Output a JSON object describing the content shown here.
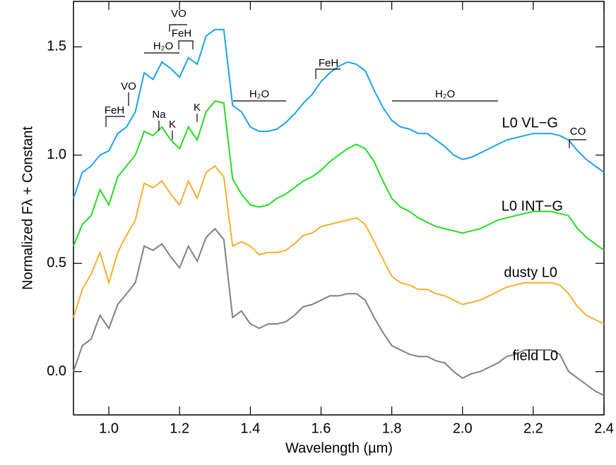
{
  "chart_data": {
    "type": "line",
    "xlabel": "Wavelength (µm)",
    "ylabel": "Normalized Fλ + Constant",
    "xlim": [
      0.9,
      2.4
    ],
    "ylim": [
      -0.2,
      1.71
    ],
    "xticks": [
      {
        "value": 1,
        "label": "1.0"
      },
      1.2,
      1.4,
      1.6,
      1.8,
      {
        "value": 2,
        "label": "2.0"
      },
      2.2,
      2.4
    ],
    "yticks": [
      {
        "value": 0,
        "label": "0.0"
      },
      0.5,
      {
        "value": 1,
        "label": "1.0"
      },
      1.5
    ],
    "x": [
      0.9,
      0.925,
      0.95,
      0.975,
      1.0,
      1.025,
      1.05,
      1.075,
      1.1,
      1.125,
      1.15,
      1.175,
      1.2,
      1.225,
      1.25,
      1.275,
      1.3,
      1.325,
      1.35,
      1.375,
      1.4,
      1.425,
      1.45,
      1.475,
      1.5,
      1.525,
      1.55,
      1.575,
      1.6,
      1.625,
      1.65,
      1.675,
      1.7,
      1.725,
      1.75,
      1.775,
      1.8,
      1.825,
      1.85,
      1.875,
      1.9,
      1.925,
      1.95,
      1.975,
      2.0,
      2.025,
      2.05,
      2.075,
      2.1,
      2.125,
      2.15,
      2.175,
      2.2,
      2.225,
      2.25,
      2.275,
      2.3,
      2.325,
      2.35,
      2.375,
      2.4
    ],
    "series": [
      {
        "name": "L0 VL−G",
        "color": "#1ba3ea",
        "values": [
          0.8,
          0.92,
          0.95,
          1.0,
          1.02,
          1.1,
          1.13,
          1.2,
          1.38,
          1.35,
          1.43,
          1.4,
          1.36,
          1.45,
          1.42,
          1.55,
          1.58,
          1.58,
          1.23,
          1.2,
          1.13,
          1.11,
          1.11,
          1.12,
          1.15,
          1.19,
          1.24,
          1.28,
          1.34,
          1.38,
          1.41,
          1.43,
          1.42,
          1.39,
          1.3,
          1.22,
          1.16,
          1.13,
          1.12,
          1.1,
          1.1,
          1.07,
          1.04,
          1.0,
          0.98,
          0.99,
          1.01,
          1.03,
          1.05,
          1.07,
          1.08,
          1.09,
          1.1,
          1.1,
          1.1,
          1.09,
          1.07,
          1.02,
          0.98,
          0.95,
          0.92
        ]
      },
      {
        "name": "L0 INT−G",
        "color": "#22dd22",
        "values": [
          0.58,
          0.68,
          0.72,
          0.84,
          0.77,
          0.9,
          0.95,
          1.0,
          1.11,
          1.09,
          1.13,
          1.07,
          1.03,
          1.13,
          1.07,
          1.2,
          1.25,
          1.24,
          0.89,
          0.82,
          0.77,
          0.76,
          0.77,
          0.8,
          0.82,
          0.85,
          0.88,
          0.9,
          0.93,
          0.97,
          1.0,
          1.03,
          1.05,
          1.03,
          0.97,
          0.88,
          0.8,
          0.76,
          0.74,
          0.71,
          0.69,
          0.67,
          0.66,
          0.65,
          0.64,
          0.65,
          0.66,
          0.68,
          0.7,
          0.71,
          0.72,
          0.73,
          0.74,
          0.74,
          0.74,
          0.73,
          0.72,
          0.66,
          0.62,
          0.59,
          0.56
        ]
      },
      {
        "name": "dusty L0",
        "color": "#f5b031",
        "values": [
          0.25,
          0.38,
          0.45,
          0.55,
          0.41,
          0.55,
          0.63,
          0.7,
          0.87,
          0.85,
          0.88,
          0.82,
          0.77,
          0.88,
          0.8,
          0.92,
          0.95,
          0.9,
          0.58,
          0.6,
          0.58,
          0.54,
          0.55,
          0.55,
          0.56,
          0.59,
          0.63,
          0.64,
          0.67,
          0.68,
          0.69,
          0.7,
          0.71,
          0.68,
          0.6,
          0.52,
          0.44,
          0.41,
          0.4,
          0.38,
          0.38,
          0.36,
          0.35,
          0.33,
          0.31,
          0.32,
          0.33,
          0.35,
          0.37,
          0.39,
          0.4,
          0.41,
          0.41,
          0.41,
          0.41,
          0.4,
          0.36,
          0.3,
          0.26,
          0.24,
          0.22
        ]
      },
      {
        "name": "field L0",
        "color": "#808080",
        "values": [
          0.0,
          0.12,
          0.15,
          0.26,
          0.2,
          0.31,
          0.36,
          0.41,
          0.58,
          0.56,
          0.59,
          0.53,
          0.48,
          0.58,
          0.51,
          0.62,
          0.66,
          0.61,
          0.25,
          0.28,
          0.22,
          0.2,
          0.22,
          0.22,
          0.23,
          0.26,
          0.3,
          0.31,
          0.33,
          0.35,
          0.35,
          0.36,
          0.36,
          0.33,
          0.25,
          0.18,
          0.12,
          0.1,
          0.08,
          0.07,
          0.07,
          0.05,
          0.04,
          0.0,
          -0.03,
          -0.01,
          0.0,
          0.02,
          0.04,
          0.07,
          0.08,
          0.1,
          0.1,
          0.1,
          0.1,
          0.08,
          0.0,
          -0.03,
          -0.06,
          -0.09,
          -0.11
        ]
      }
    ],
    "annotations": [
      "FeH",
      "VO",
      "H₂O",
      "VO",
      "FeH",
      "Na",
      "K",
      "K",
      "H₂O",
      "FeH",
      "H₂O",
      "CO"
    ]
  }
}
